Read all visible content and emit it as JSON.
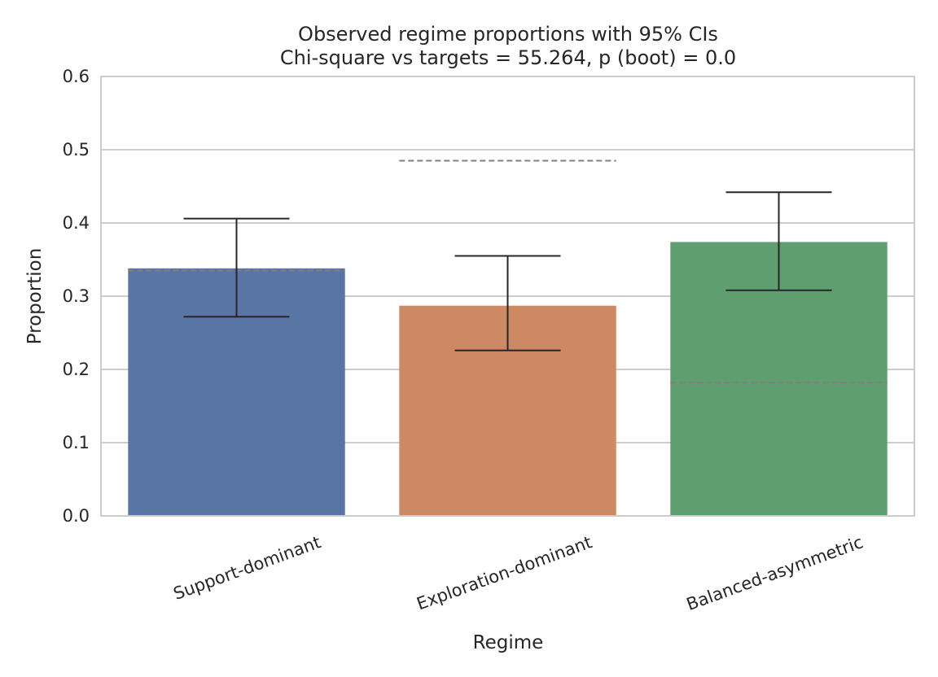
{
  "chart_data": {
    "type": "bar",
    "title": "Observed regime proportions with 95% CIs",
    "subtitle": "Chi-square vs targets = 55.264, p (boot) = 0.0",
    "xlabel": "Regime",
    "ylabel": "Proportion",
    "ylim": [
      0,
      0.6
    ],
    "yticks": [
      "0.0",
      "0.1",
      "0.2",
      "0.3",
      "0.4",
      "0.5",
      "0.6"
    ],
    "grid": true,
    "categories": [
      "Support-dominant",
      "Exploration-dominant",
      "Balanced-asymmetric"
    ],
    "values": [
      0.338,
      0.287,
      0.374
    ],
    "ci_low": [
      0.272,
      0.226,
      0.308
    ],
    "ci_high": [
      0.406,
      0.355,
      0.442
    ],
    "targets": [
      0.335,
      0.485,
      0.182
    ],
    "colors": [
      "#5875a4",
      "#cc8963",
      "#5f9e6e"
    ],
    "grid_color": "#cccccc",
    "target_line_color": "#808080",
    "error_bar_color": "#262626"
  }
}
